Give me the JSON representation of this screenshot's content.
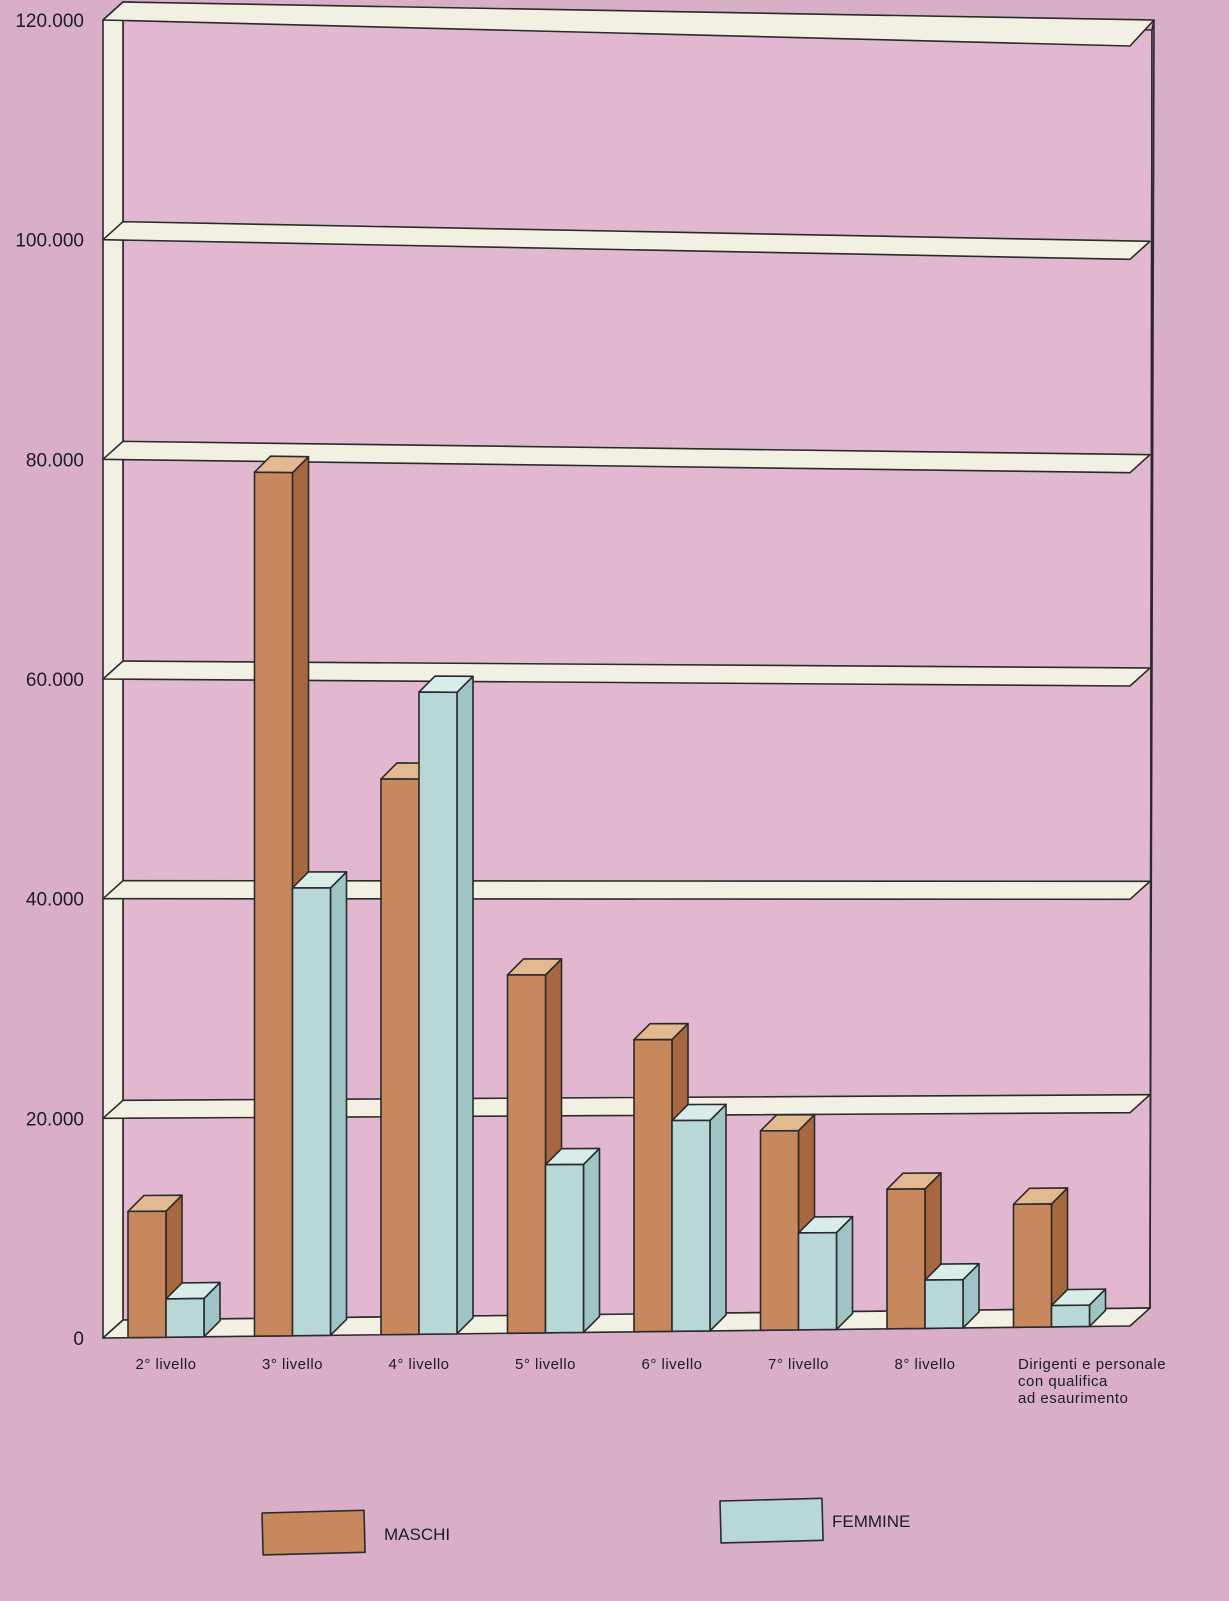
{
  "chart_data": {
    "type": "bar",
    "title": "",
    "xlabel": "",
    "ylabel": "",
    "ylim": [
      0,
      120000
    ],
    "yticks": [
      0,
      20000,
      40000,
      60000,
      80000,
      100000,
      120000
    ],
    "ytick_labels": [
      "0",
      "20.000",
      "40.000",
      "60.000",
      "80.000",
      "100.000",
      "120.000"
    ],
    "grid": true,
    "legend_position": "bottom",
    "categories": [
      [
        "2° livello"
      ],
      [
        "3° livello"
      ],
      [
        "4° livello"
      ],
      [
        "5° livello"
      ],
      [
        "6° livello"
      ],
      [
        "7° livello"
      ],
      [
        "8° livello"
      ],
      [
        "Dirigenti e personale",
        "con qualifica",
        "ad esaurimento"
      ]
    ],
    "series": [
      {
        "name": "MASCHI",
        "color": "#c8885d",
        "top_color": "#e2b990",
        "side_color": "#a8683f",
        "values": [
          11500,
          79000,
          51000,
          33000,
          27000,
          18500,
          13000,
          11500
        ]
      },
      {
        "name": "FEMMINE",
        "color": "#b8d8d8",
        "top_color": "#d8ecea",
        "side_color": "#9ec4c6",
        "values": [
          3500,
          41000,
          59000,
          15500,
          19500,
          9000,
          4500,
          2000
        ]
      }
    ]
  }
}
